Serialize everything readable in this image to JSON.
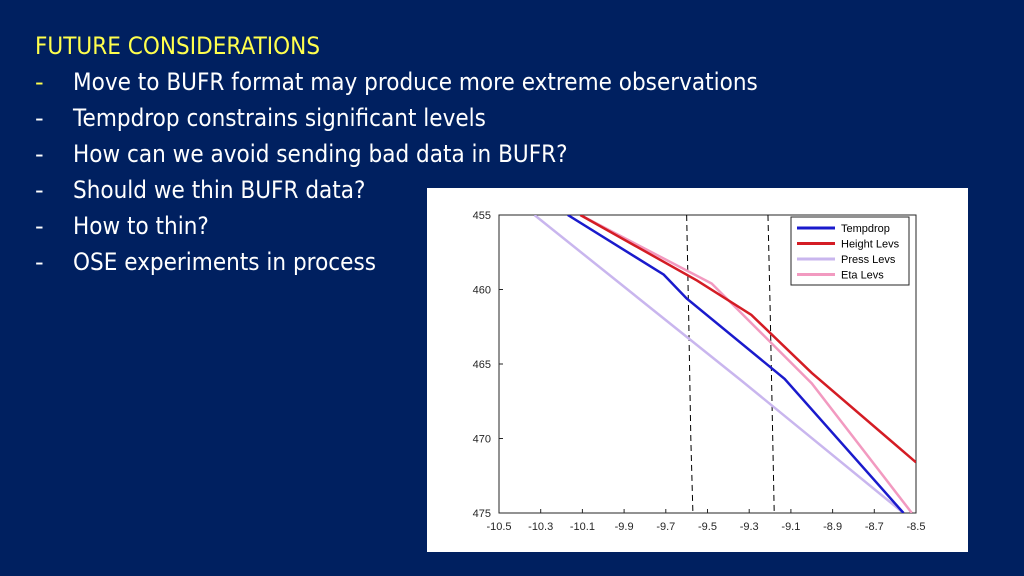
{
  "slide": {
    "title": "FUTURE CONSIDERATIONS",
    "bullets": [
      {
        "dash": "-",
        "text": "Move to BUFR format may produce more extreme observations"
      },
      {
        "dash": "-",
        "text": "Tempdrop constrains significant levels"
      },
      {
        "dash": "-",
        "text": "How can we avoid sending bad data in BUFR?"
      },
      {
        "dash": "-",
        "text": "Should we thin BUFR data?"
      },
      {
        "dash": "-",
        "text": "How to thin?"
      },
      {
        "dash": "-",
        "text": "OSE experiments in process"
      }
    ],
    "colors": {
      "background": "#002060",
      "title": "#ffff4d",
      "text": "#ffffff"
    }
  },
  "chart_data": {
    "type": "line",
    "title": "",
    "xlabel": "",
    "ylabel": "",
    "xlim": [
      -10.5,
      -8.5
    ],
    "ylim": [
      455,
      475
    ],
    "y_reversed": true,
    "xticks": [
      "-10.5",
      "-10.3",
      "-10.1",
      "-9.9",
      "-9.7",
      "-9.5",
      "-9.3",
      "-9.1",
      "-8.9",
      "-8.7",
      "-8.5"
    ],
    "yticks": [
      "455",
      "460",
      "465",
      "470",
      "475"
    ],
    "grid": false,
    "legend_position": "top-right",
    "series": [
      {
        "name": "Tempdrop",
        "color": "#1a1acc",
        "width": 2.5,
        "x": [
          -10.17,
          -9.71,
          -9.6,
          -9.13,
          -8.56
        ],
        "y": [
          455,
          459,
          460.6,
          466,
          475
        ]
      },
      {
        "name": "Height Levs",
        "color": "#d41c24",
        "width": 2.5,
        "x": [
          -10.11,
          -9.55,
          -9.29,
          -9.0,
          -8.5
        ],
        "y": [
          455,
          459.4,
          461.7,
          465.6,
          471.6
        ]
      },
      {
        "name": "Press Levs",
        "color": "#c9b6ee",
        "width": 2.5,
        "x": [
          -10.33,
          -9.33,
          -8.56
        ],
        "y": [
          455,
          466.2,
          475
        ]
      },
      {
        "name": "Eta Levs",
        "color": "#f29ac0",
        "width": 2.5,
        "x": [
          -10.11,
          -9.48,
          -9.0,
          -8.52
        ],
        "y": [
          455,
          459.6,
          466.3,
          475
        ]
      }
    ],
    "reference_lines": [
      {
        "style": "dashed",
        "color": "#000000",
        "x": [
          -9.6,
          -9.59,
          -9.58,
          -9.57
        ],
        "y": [
          455,
          462,
          470,
          475
        ]
      },
      {
        "style": "dashed",
        "color": "#000000",
        "x": [
          -9.21,
          -9.2,
          -9.19,
          -9.18
        ],
        "y": [
          455,
          461,
          468,
          475
        ]
      }
    ]
  }
}
